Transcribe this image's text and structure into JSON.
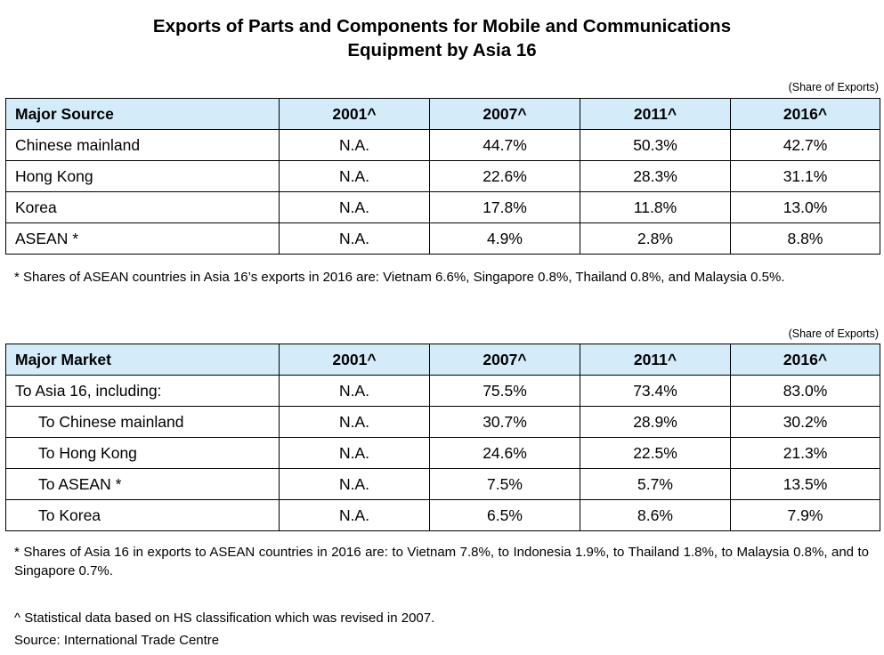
{
  "title_line1": "Exports of Parts and Components for Mobile and Communications",
  "title_line2": "Equipment by Asia 16",
  "unit_label": "(Share of Exports)",
  "header_color": "#d4ecf9",
  "source_table": {
    "headers": [
      "Major Source",
      "2001^",
      "2007^",
      "2011^",
      "2016^"
    ],
    "rows": [
      {
        "label": "Chinese mainland",
        "values": [
          "N.A.",
          "44.7%",
          "50.3%",
          "42.7%"
        ]
      },
      {
        "label": "Hong Kong",
        "values": [
          "N.A.",
          "22.6%",
          "28.3%",
          "31.1%"
        ]
      },
      {
        "label": "Korea",
        "values": [
          "N.A.",
          "17.8%",
          "11.8%",
          "13.0%"
        ]
      },
      {
        "label": "ASEAN *",
        "values": [
          "N.A.",
          "4.9%",
          "2.8%",
          "8.8%"
        ]
      }
    ],
    "note": "* Shares of ASEAN countries in Asia 16’s exports in 2016 are: Vietnam 6.6%, Singapore 0.8%, Thailand 0.8%, and Malaysia 0.5%."
  },
  "market_table": {
    "headers": [
      "Major Market",
      "2001^",
      "2007^",
      "2011^",
      "2016^"
    ],
    "rows": [
      {
        "label": "To Asia 16, including:",
        "values": [
          "N.A.",
          "75.5%",
          "73.4%",
          "83.0%"
        ]
      },
      {
        "label": "To Chinese mainland",
        "values": [
          "N.A.",
          "30.7%",
          "28.9%",
          "30.2%"
        ]
      },
      {
        "label": "To Hong Kong",
        "values": [
          "N.A.",
          "24.6%",
          "22.5%",
          "21.3%"
        ]
      },
      {
        "label": "To ASEAN *",
        "values": [
          "N.A.",
          "7.5%",
          "5.7%",
          "13.5%"
        ]
      },
      {
        "label": "To Korea",
        "values": [
          "N.A.",
          "6.5%",
          "8.6%",
          "7.9%"
        ]
      }
    ],
    "note": "* Shares of Asia 16 in exports to ASEAN countries in 2016 are: to Vietnam 7.8%, to Indonesia 1.9%, to Thailand 1.8%, to Malaysia 0.8%, and to Singapore 0.7%."
  },
  "footnote": "^ Statistical data based on HS classification which was revised in 2007.",
  "source": "Source: International Trade Centre"
}
